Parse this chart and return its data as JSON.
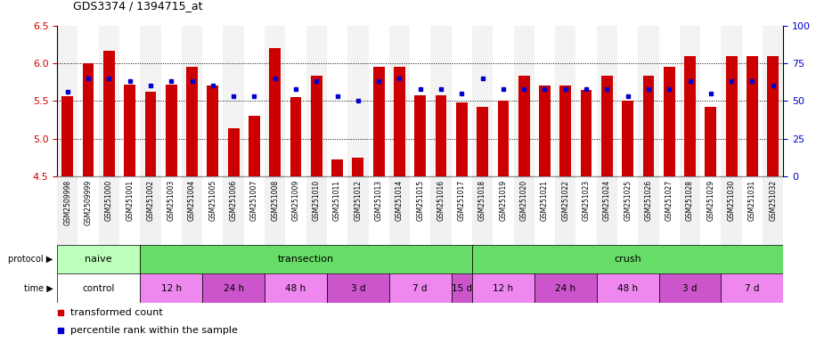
{
  "title": "GDS3374 / 1394715_at",
  "samples": [
    "GSM2509998",
    "GSM2509999",
    "GSM251000",
    "GSM251001",
    "GSM251002",
    "GSM251003",
    "GSM251004",
    "GSM251005",
    "GSM251006",
    "GSM251007",
    "GSM251008",
    "GSM251009",
    "GSM251010",
    "GSM251011",
    "GSM251012",
    "GSM251013",
    "GSM251014",
    "GSM251015",
    "GSM251016",
    "GSM251017",
    "GSM251018",
    "GSM251019",
    "GSM251020",
    "GSM251021",
    "GSM251022",
    "GSM251023",
    "GSM251024",
    "GSM251025",
    "GSM251026",
    "GSM251027",
    "GSM251028",
    "GSM251029",
    "GSM251030",
    "GSM251031",
    "GSM251032"
  ],
  "bar_values": [
    5.56,
    6.0,
    6.17,
    5.72,
    5.62,
    5.72,
    5.95,
    5.7,
    5.14,
    5.3,
    6.2,
    5.55,
    5.83,
    4.72,
    4.75,
    5.95,
    5.95,
    5.57,
    5.57,
    5.48,
    5.42,
    5.5,
    5.83,
    5.7,
    5.7,
    5.65,
    5.83,
    5.5,
    5.83,
    5.95,
    6.1,
    5.42,
    6.1,
    6.1,
    6.1
  ],
  "percentile_values": [
    56,
    65,
    65,
    63,
    60,
    63,
    63,
    60,
    53,
    53,
    65,
    58,
    63,
    53,
    50,
    63,
    65,
    58,
    58,
    55,
    65,
    58,
    58,
    58,
    58,
    58,
    58,
    53,
    58,
    58,
    63,
    55,
    63,
    63,
    60
  ],
  "ylim_left": [
    4.5,
    6.5
  ],
  "ylim_right": [
    0,
    100
  ],
  "yticks_left": [
    4.5,
    5.0,
    5.5,
    6.0,
    6.5
  ],
  "yticks_right": [
    0,
    25,
    50,
    75,
    100
  ],
  "bar_color": "#cc0000",
  "percentile_color": "#0000cc",
  "bar_bottom": 4.5,
  "protocols": [
    {
      "label": "naive",
      "start": 0,
      "end": 4,
      "color": "#bbffbb"
    },
    {
      "label": "transection",
      "start": 4,
      "end": 20,
      "color": "#66dd66"
    },
    {
      "label": "crush",
      "start": 20,
      "end": 35,
      "color": "#66dd66"
    }
  ],
  "time_groups": [
    {
      "label": "control",
      "start": 0,
      "end": 4,
      "color": "#ffffff"
    },
    {
      "label": "12 h",
      "start": 4,
      "end": 7,
      "color": "#ee88ee"
    },
    {
      "label": "24 h",
      "start": 7,
      "end": 10,
      "color": "#cc55cc"
    },
    {
      "label": "48 h",
      "start": 10,
      "end": 13,
      "color": "#ee88ee"
    },
    {
      "label": "3 d",
      "start": 13,
      "end": 16,
      "color": "#cc55cc"
    },
    {
      "label": "7 d",
      "start": 16,
      "end": 19,
      "color": "#ee88ee"
    },
    {
      "label": "15 d",
      "start": 19,
      "end": 20,
      "color": "#cc55cc"
    },
    {
      "label": "12 h",
      "start": 20,
      "end": 23,
      "color": "#ee88ee"
    },
    {
      "label": "24 h",
      "start": 23,
      "end": 26,
      "color": "#cc55cc"
    },
    {
      "label": "48 h",
      "start": 26,
      "end": 29,
      "color": "#ee88ee"
    },
    {
      "label": "3 d",
      "start": 29,
      "end": 32,
      "color": "#cc55cc"
    },
    {
      "label": "7 d",
      "start": 32,
      "end": 35,
      "color": "#ee88ee"
    }
  ],
  "legend_items": [
    {
      "label": "transformed count",
      "color": "#cc0000"
    },
    {
      "label": "percentile rank within the sample",
      "color": "#0000cc"
    }
  ],
  "tick_label_color_left": "#cc0000",
  "tick_label_color_right": "#0000cc",
  "stripe_colors": [
    "#e8e8e8",
    "#ffffff"
  ]
}
